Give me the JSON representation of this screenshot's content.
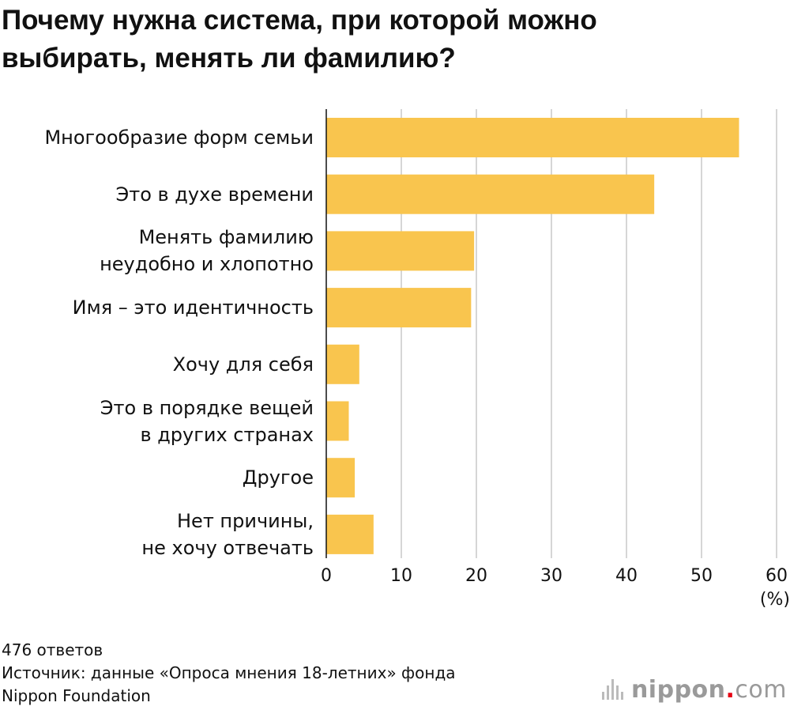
{
  "title_lines": [
    "Почему нужна система, при которой можно",
    "выбирать, менять ли фамилию?"
  ],
  "chart_data": {
    "type": "bar",
    "orientation": "horizontal",
    "title": "Почему нужна система, при которой можно выбирать, менять ли фамилию?",
    "categories": [
      [
        "Многообразие форм семьи"
      ],
      [
        "Это в духе времени"
      ],
      [
        "Менять фамилию",
        "неудобно и хлопотно"
      ],
      [
        "Имя – это идентичность"
      ],
      [
        "Хочу для себя"
      ],
      [
        "Это в порядке вещей",
        "в других странах"
      ],
      [
        "Другое"
      ],
      [
        "Нет причины,",
        "не хочу отвечать"
      ]
    ],
    "values": [
      55.0,
      43.7,
      19.7,
      19.3,
      4.4,
      3.0,
      3.8,
      6.3
    ],
    "xlim": [
      0,
      60
    ],
    "xticks": [
      0,
      10,
      20,
      30,
      40,
      50,
      60
    ],
    "xticks_labels": [
      "0",
      "10",
      "20",
      "30",
      "40",
      "50",
      "60"
    ],
    "unit_label": "(%)",
    "grid": true,
    "bar_color": "#f9c54e",
    "grid_color": "#c8c8c8"
  },
  "footer": {
    "responses": "476 ответов",
    "source_line1": "Источник: данные «Опроса мнения 18-летних» фонда",
    "source_line2": "Nippon Foundation"
  },
  "logo": {
    "name": "nippon",
    "dot": ".",
    "domain": "com",
    "accent": "#e60012"
  }
}
